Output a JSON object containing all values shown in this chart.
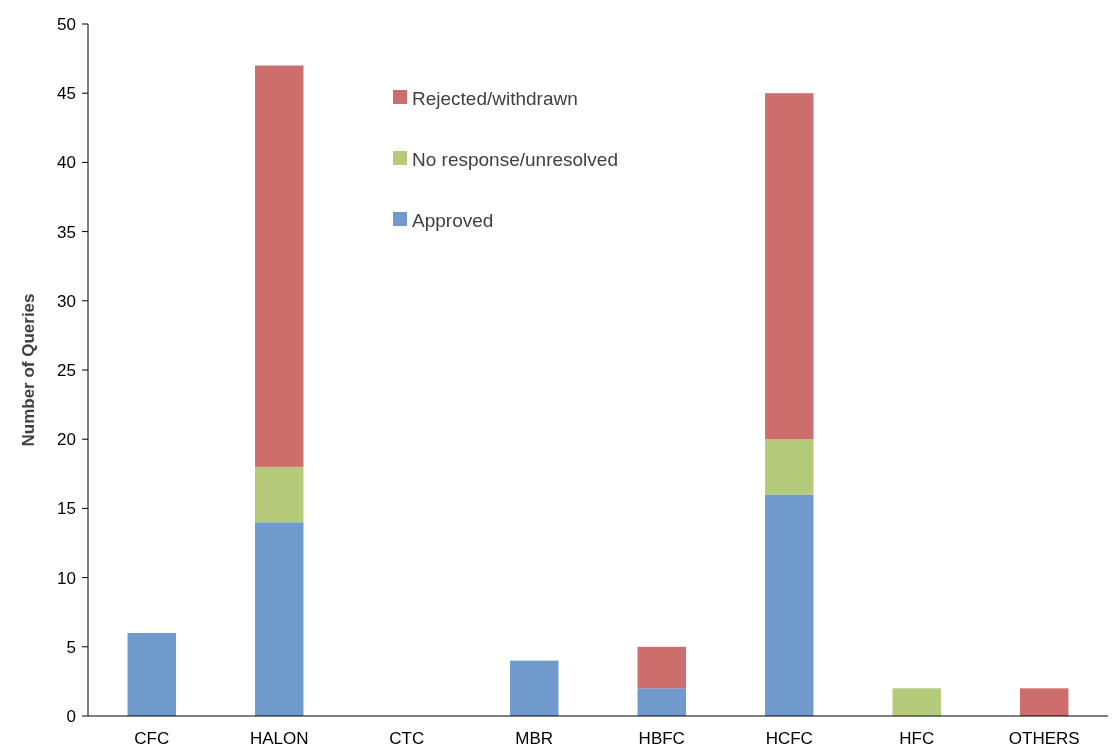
{
  "chart_data": {
    "type": "bar",
    "stacked": true,
    "ylabel": "Number of Queries",
    "categories": [
      "CFC",
      "HALON",
      "CTC",
      "MBR",
      "HBFC",
      "HCFC",
      "HFC",
      "OTHERS"
    ],
    "series": [
      {
        "name": "Approved",
        "color": "#7099cc",
        "values": [
          6,
          14,
          0,
          4,
          2,
          16,
          0,
          0
        ]
      },
      {
        "name": "No response/unresolved",
        "color": "#b3cb7a",
        "values": [
          0,
          4,
          0,
          0,
          0,
          4,
          2,
          0
        ]
      },
      {
        "name": "Rejected/withdrawn",
        "color": "#cd6e6c",
        "values": [
          0,
          29,
          0,
          0,
          3,
          25,
          0,
          2
        ]
      }
    ],
    "ylim": [
      0,
      50
    ],
    "yticks": [
      0,
      5,
      10,
      15,
      20,
      25,
      30,
      35,
      40,
      45,
      50
    ],
    "grid": false,
    "legend": "top"
  }
}
